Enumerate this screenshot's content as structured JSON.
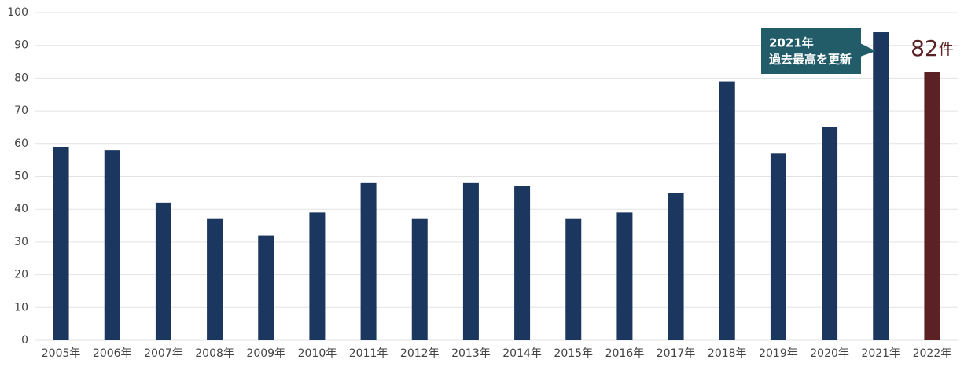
{
  "chart_data": {
    "type": "bar",
    "categories": [
      "2005年",
      "2006年",
      "2007年",
      "2008年",
      "2009年",
      "2010年",
      "2011年",
      "2012年",
      "2013年",
      "2014年",
      "2015年",
      "2016年",
      "2017年",
      "2018年",
      "2019年",
      "2020年",
      "2021年",
      "2022年"
    ],
    "values": [
      59,
      58,
      42,
      37,
      32,
      39,
      48,
      37,
      48,
      47,
      37,
      39,
      45,
      79,
      57,
      65,
      94,
      82
    ],
    "value_labels": [
      null,
      null,
      null,
      null,
      null,
      null,
      null,
      null,
      null,
      null,
      null,
      null,
      null,
      null,
      null,
      null,
      null,
      "82件"
    ],
    "colors": [
      "#1b365f",
      "#1b365f",
      "#1b365f",
      "#1b365f",
      "#1b365f",
      "#1b365f",
      "#1b365f",
      "#1b365f",
      "#1b365f",
      "#1b365f",
      "#1b365f",
      "#1b365f",
      "#1b365f",
      "#1b365f",
      "#1b365f",
      "#1b365f",
      "#1b365f",
      "#5c2124"
    ],
    "ylim": [
      0,
      100
    ],
    "yticks": [
      0,
      10,
      20,
      30,
      40,
      50,
      60,
      70,
      80,
      90,
      100
    ],
    "grid": true,
    "annotation": [
      "2021年",
      "過去最高を更新"
    ]
  }
}
